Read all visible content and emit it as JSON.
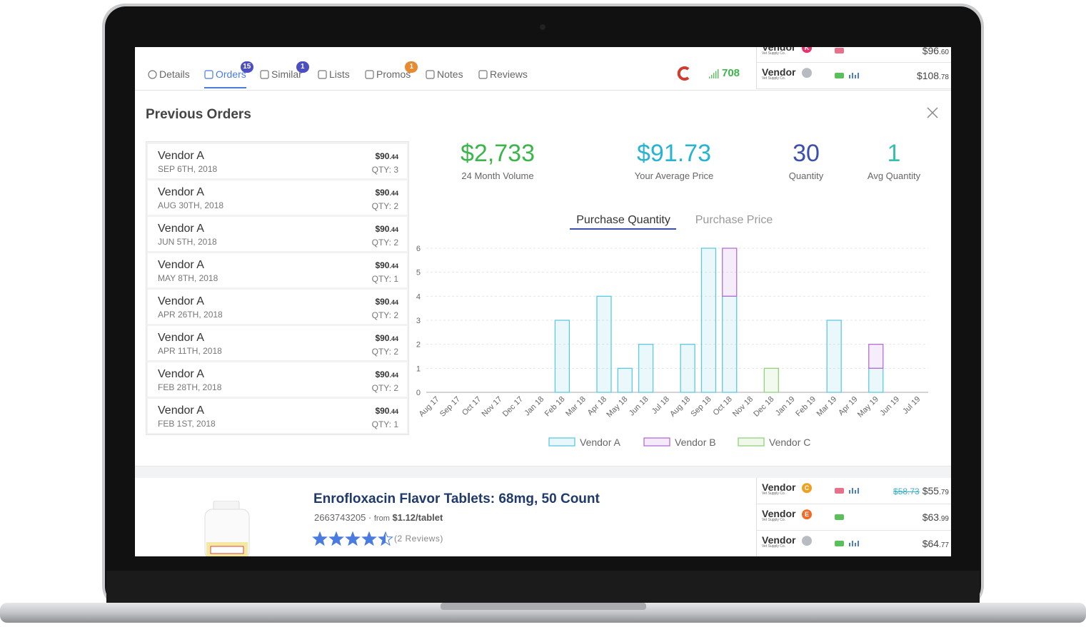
{
  "tabs": [
    {
      "label": "Details"
    },
    {
      "label": "Orders",
      "badge": "15",
      "badge_color": "#4b4fc2"
    },
    {
      "label": "Similar",
      "badge": "1",
      "badge_color": "#4b4fc2"
    },
    {
      "label": "Lists"
    },
    {
      "label": "Promos",
      "badge": "1",
      "badge_color": "#e88a2e"
    },
    {
      "label": "Notes"
    },
    {
      "label": "Reviews"
    }
  ],
  "score": "708",
  "top_vendors": [
    {
      "name": "Vendor",
      "sub": "Vet Supply Co.",
      "logo": "K",
      "logo_color": "#e8336b",
      "price": "$96",
      "cents": ".60"
    },
    {
      "name": "Vendor",
      "sub": "Vet Supply Co.",
      "logo_color": "#b8bcc2",
      "price": "$108",
      "cents": ".78"
    }
  ],
  "panel_title": "Previous Orders",
  "orders": [
    {
      "vendor": "Vendor A",
      "date": "SEP 6TH, 2018",
      "price": "$90",
      "cents": ".44",
      "qty": "QTY: 3"
    },
    {
      "vendor": "Vendor A",
      "date": "AUG 30TH, 2018",
      "price": "$90",
      "cents": ".44",
      "qty": "QTY: 2"
    },
    {
      "vendor": "Vendor A",
      "date": "JUN 5TH, 2018",
      "price": "$90",
      "cents": ".44",
      "qty": "QTY: 2"
    },
    {
      "vendor": "Vendor A",
      "date": "MAY 8TH, 2018",
      "price": "$90",
      "cents": ".44",
      "qty": "QTY: 1"
    },
    {
      "vendor": "Vendor A",
      "date": "APR 26TH, 2018",
      "price": "$90",
      "cents": ".44",
      "qty": "QTY: 2"
    },
    {
      "vendor": "Vendor A",
      "date": "APR 11TH, 2018",
      "price": "$90",
      "cents": ".44",
      "qty": "QTY: 2"
    },
    {
      "vendor": "Vendor A",
      "date": "FEB 28TH, 2018",
      "price": "$90",
      "cents": ".44",
      "qty": "QTY: 2"
    },
    {
      "vendor": "Vendor A",
      "date": "FEB 1ST, 2018",
      "price": "$90",
      "cents": ".44",
      "qty": "QTY: 1"
    }
  ],
  "stats": [
    {
      "value": "$2,733",
      "label": "24 Month Volume",
      "color": "#3cb54a"
    },
    {
      "value": "$91.73",
      "label": "Your Average Price",
      "color": "#27b3d1"
    },
    {
      "value": "30",
      "label": "Quantity",
      "color": "#3b4fb0"
    },
    {
      "value": "1",
      "label": "Avg Quantity",
      "color": "#36bfae"
    }
  ],
  "chart_tabs": [
    "Purchase Quantity",
    "Purchase Price"
  ],
  "chart_data": {
    "type": "bar",
    "stacked": true,
    "categories": [
      "Aug 17",
      "Sep 17",
      "Oct 17",
      "Nov 17",
      "Dec 17",
      "Jan 18",
      "Feb 18",
      "Mar 18",
      "Apr 18",
      "May 18",
      "Jun 18",
      "Jul 18",
      "Aug 18",
      "Sep 18",
      "Oct 18",
      "Nov 18",
      "Dec 18",
      "Jan 19",
      "Feb 19",
      "Mar 19",
      "Apr 19",
      "May 19",
      "Jun 19",
      "Jul 19"
    ],
    "series": [
      {
        "name": "Vendor A",
        "color": "#5ec9e2",
        "values": [
          0,
          0,
          0,
          0,
          0,
          0,
          3,
          0,
          4,
          1,
          2,
          0,
          2,
          6,
          4,
          0,
          0,
          0,
          0,
          3,
          0,
          1,
          0,
          0
        ]
      },
      {
        "name": "Vendor B",
        "color": "#b46fd8",
        "values": [
          0,
          0,
          0,
          0,
          0,
          0,
          0,
          0,
          0,
          0,
          0,
          0,
          0,
          0,
          2,
          0,
          0,
          0,
          0,
          0,
          0,
          1,
          0,
          0
        ]
      },
      {
        "name": "Vendor C",
        "color": "#92d27c",
        "values": [
          0,
          0,
          0,
          0,
          0,
          0,
          0,
          0,
          0,
          0,
          0,
          0,
          0,
          0,
          0,
          0,
          1,
          0,
          0,
          0,
          0,
          0,
          0,
          0
        ]
      }
    ],
    "ylim": [
      0,
      6
    ],
    "yticks": [
      0,
      1,
      2,
      3,
      4,
      5,
      6
    ],
    "grid": true
  },
  "product": {
    "title": "Enrofloxacin Flavor Tablets: 68mg, 50 Count",
    "sku": "2663743205",
    "from": "from",
    "unit_price": "$1.12/tablet",
    "rating": 4.5,
    "reviews": "(2 Reviews)"
  },
  "bottom_vendors": [
    {
      "name": "Vendor",
      "sub": "Vet Supply Co.",
      "logo": "C",
      "logo_color": "#f0a020",
      "old_price": "$58.73",
      "price": "$55",
      "cents": ".79"
    },
    {
      "name": "Vendor",
      "sub": "Vet Supply Co.",
      "logo": "E",
      "logo_color": "#f06a2a",
      "price": "$63",
      "cents": ".99"
    },
    {
      "name": "Vendor",
      "sub": "Vet Supply Co.",
      "logo_color": "#b8bcc2",
      "price": "$64",
      "cents": ".77"
    }
  ]
}
